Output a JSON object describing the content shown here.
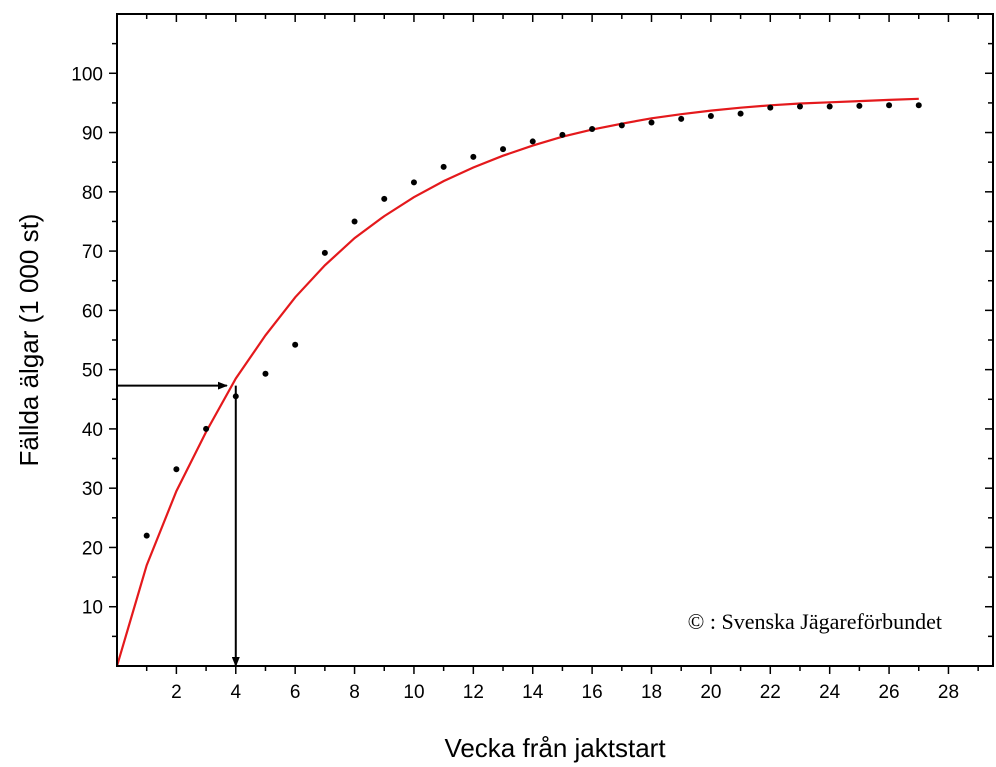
{
  "chart_data": {
    "type": "scatter",
    "xlabel": "Vecka från jaktstart",
    "ylabel": "Fällda älgar (1 000 st)",
    "xlim": [
      0,
      29.5
    ],
    "ylim": [
      0,
      110
    ],
    "x_ticks": [
      2,
      4,
      6,
      8,
      10,
      12,
      14,
      16,
      18,
      20,
      22,
      24,
      26,
      28
    ],
    "y_ticks": [
      10,
      20,
      30,
      40,
      50,
      60,
      70,
      80,
      90,
      100
    ],
    "grid": false,
    "series": [
      {
        "type": "scatter",
        "color": "#000000",
        "x": [
          1,
          2,
          3,
          4,
          5,
          6,
          7,
          8,
          9,
          10,
          11,
          12,
          13,
          14,
          15,
          16,
          17,
          18,
          19,
          20,
          21,
          22,
          23,
          24,
          25,
          26,
          27
        ],
        "y": [
          22,
          33.2,
          40,
          45.5,
          49.3,
          54.2,
          69.7,
          75,
          78.8,
          81.6,
          84.2,
          85.9,
          87.2,
          88.5,
          89.6,
          90.6,
          91.2,
          91.7,
          92.3,
          92.8,
          93.2,
          94.2,
          94.4,
          94.4,
          94.5,
          94.6,
          94.6
        ]
      },
      {
        "type": "line",
        "color": "#e4191c",
        "x": [
          0,
          1,
          2,
          3,
          4,
          5,
          6,
          7,
          8,
          9,
          10,
          11,
          12,
          13,
          14,
          15,
          16,
          17,
          18,
          19,
          20,
          21,
          22,
          23,
          24,
          25,
          26,
          27
        ],
        "y": [
          0,
          17,
          29.5,
          39.5,
          48.5,
          55.8,
          62.2,
          67.6,
          72.2,
          75.9,
          79.1,
          81.8,
          84.1,
          86.1,
          87.8,
          89.3,
          90.5,
          91.5,
          92.4,
          93.1,
          93.7,
          94.2,
          94.6,
          94.9,
          95.1,
          95.3,
          95.5,
          95.7
        ]
      }
    ],
    "annotations": {
      "arrow_horizontal": {
        "x_from": 0,
        "x_to": 3.7,
        "y": 47.3
      },
      "arrow_vertical": {
        "x": 4,
        "y_from": 47.3,
        "y_to": 0
      },
      "copyright": "© : Svenska Jägareförbundet"
    }
  }
}
